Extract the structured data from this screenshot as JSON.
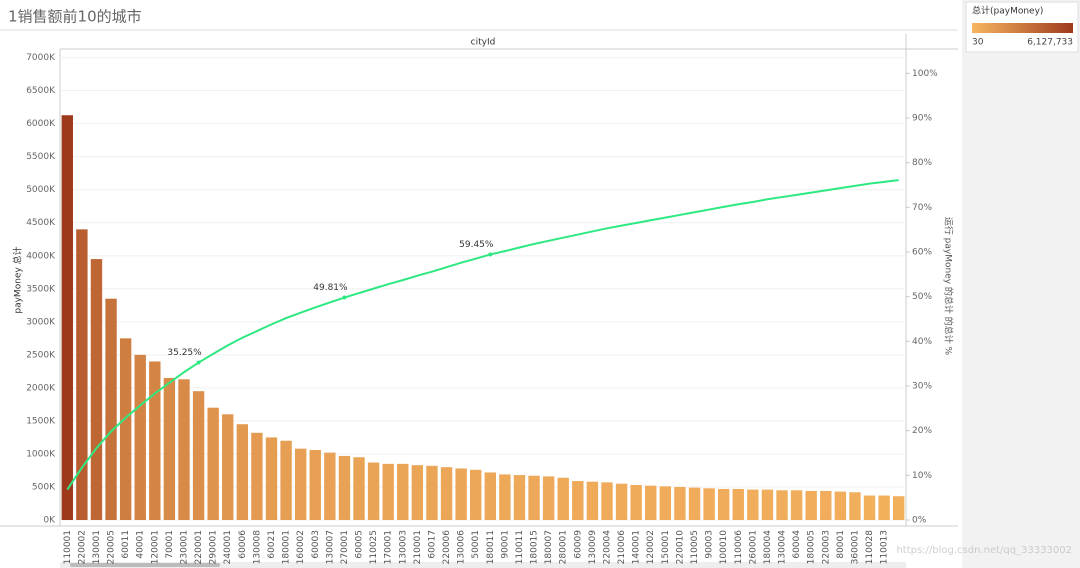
{
  "chart_data": {
    "type": "pareto",
    "title": "1销售额前10的城市",
    "header": "cityId",
    "y_label": "payMoney 总计",
    "y2_label": "运行 payMoney 的总计 的总计 %",
    "watermark": "https://blog.csdn.net/qq_33333002",
    "categories": [
      "110001",
      "220002",
      "130001",
      "220005",
      "60011",
      "40001",
      "120001",
      "70001",
      "230001",
      "220001",
      "290001",
      "240001",
      "60006",
      "130008",
      "60021",
      "180001",
      "160002",
      "60003",
      "130007",
      "270001",
      "60005",
      "110025",
      "170001",
      "130003",
      "210001",
      "60017",
      "220006",
      "130006",
      "50001",
      "180011",
      "90001",
      "110011",
      "180015",
      "180007",
      "280001",
      "60009",
      "130009",
      "220004",
      "210006",
      "140001",
      "120002",
      "150001",
      "220010",
      "110005",
      "90003",
      "100010",
      "110006",
      "260001",
      "180004",
      "130004",
      "60004",
      "180005",
      "220003",
      "80001",
      "360001",
      "110028",
      "110013",
      null
    ],
    "series": [
      {
        "values": [
          6127733,
          4400000,
          3950000,
          3350000,
          2750000,
          2500000,
          2400000,
          2150000,
          2130000,
          1950000,
          1700000,
          1600000,
          1450000,
          1320000,
          1250000,
          1200000,
          1080000,
          1060000,
          1020000,
          970000,
          950000,
          870000,
          850000,
          850000,
          830000,
          820000,
          800000,
          780000,
          760000,
          720000,
          690000,
          680000,
          670000,
          660000,
          640000,
          590000,
          580000,
          570000,
          550000,
          530000,
          520000,
          510000,
          500000,
          490000,
          480000,
          470000,
          470000,
          460000,
          460000,
          450000,
          450000,
          440000,
          440000,
          430000,
          420000,
          370000,
          370000,
          360000
        ]
      },
      {
        "axis": "y2",
        "color": "#2ee882",
        "values": [
          6.81,
          11.7,
          16.1,
          19.82,
          22.88,
          25.66,
          28.32,
          30.72,
          33.08,
          35.25,
          37.2,
          39.1,
          40.8,
          42.3,
          43.8,
          45.2,
          46.4,
          47.6,
          48.7,
          49.81,
          50.8,
          51.8,
          52.8,
          53.7,
          54.7,
          55.6,
          56.6,
          57.6,
          58.5,
          59.45,
          60.2,
          61.0,
          61.8,
          62.5,
          63.2,
          63.9,
          64.6,
          65.3,
          65.9,
          66.5,
          67.1,
          67.7,
          68.3,
          68.9,
          69.5,
          70.1,
          70.7,
          71.2,
          71.8,
          72.3,
          72.8,
          73.3,
          73.8,
          74.3,
          74.8,
          75.3,
          75.7,
          76.1
        ],
        "value_labels": [
          null,
          null,
          null,
          null,
          null,
          null,
          null,
          null,
          null,
          "35.25%",
          null,
          null,
          null,
          null,
          null,
          null,
          null,
          null,
          null,
          "49.81%",
          null,
          null,
          null,
          null,
          null,
          null,
          null,
          null,
          null,
          "59.45%",
          null,
          null,
          null,
          null,
          null,
          null,
          null,
          null,
          null,
          null,
          null,
          null,
          null,
          null,
          null,
          null,
          null,
          null,
          null,
          null,
          null,
          null,
          null,
          null,
          null,
          null,
          null,
          null
        ]
      }
    ],
    "color_legend": {
      "title": "总计(payMoney)",
      "min": 30,
      "max": {
        "value": 6127733,
        "label": "6,127,733"
      },
      "colors": [
        "#f7b660",
        "#9e3a1c"
      ]
    },
    "ylim": [
      0,
      7100000
    ],
    "yticks": [
      {
        "value": 0,
        "label": "0K"
      },
      {
        "value": 500000,
        "label": "500K"
      },
      {
        "value": 1000000,
        "label": "1000K"
      },
      {
        "value": 1500000,
        "label": "1500K"
      },
      {
        "value": 2000000,
        "label": "2000K"
      },
      {
        "value": 2500000,
        "label": "2500K"
      },
      {
        "value": 3000000,
        "label": "3000K"
      },
      {
        "value": 3500000,
        "label": "3500K"
      },
      {
        "value": 4000000,
        "label": "4000K"
      },
      {
        "value": 4500000,
        "label": "4500K"
      },
      {
        "value": 5000000,
        "label": "5000K"
      },
      {
        "value": 5500000,
        "label": "5500K"
      },
      {
        "value": 6000000,
        "label": "6000K"
      },
      {
        "value": 6500000,
        "label": "6500K"
      },
      {
        "value": 7000000,
        "label": "7000K"
      }
    ],
    "y2lim": [
      0,
      105
    ],
    "y2ticks": [
      {
        "value": 0,
        "label": "0%"
      },
      {
        "value": 10,
        "label": "10%"
      },
      {
        "value": 20,
        "label": "20%"
      },
      {
        "value": 30,
        "label": "30%"
      },
      {
        "value": 40,
        "label": "40%"
      },
      {
        "value": 50,
        "label": "50%"
      },
      {
        "value": 60,
        "label": "60%"
      },
      {
        "value": 70,
        "label": "70%"
      },
      {
        "value": 80,
        "label": "80%"
      },
      {
        "value": 90,
        "label": "90%"
      },
      {
        "value": 100,
        "label": "100%"
      }
    ],
    "grid": true
  }
}
